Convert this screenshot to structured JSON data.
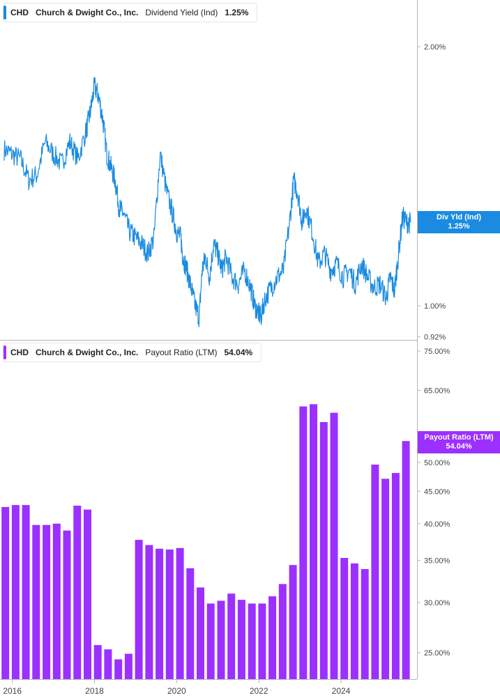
{
  "colors": {
    "yield_line": "#1a8be0",
    "payout_bar": "#9b30ff",
    "axis": "#b5b5b5",
    "tick_text": "#444444"
  },
  "panels": {
    "top": {
      "ticker": "CHD",
      "company": "Church & Dwight Co., Inc.",
      "metric": "Dividend Yield (Ind)",
      "value": "1.25%",
      "flag_label": "Div Yld (Ind)",
      "flag_value": "1.25%"
    },
    "bottom": {
      "ticker": "CHD",
      "company": "Church & Dwight Co., Inc.",
      "metric": "Payout Ratio (LTM)",
      "value": "54.04%",
      "flag_label": "Payout Ratio (LTM)",
      "flag_value": "54.04%"
    }
  },
  "chart_data": [
    {
      "type": "line",
      "title": "CHD Church & Dwight Co., Inc. Dividend Yield (Ind) 1.25%",
      "series": [
        {
          "name": "Dividend Yield (Ind)",
          "x": [
            2015.8,
            2016.0,
            2016.2,
            2016.4,
            2016.6,
            2016.8,
            2017.0,
            2017.2,
            2017.4,
            2017.6,
            2017.8,
            2017.9,
            2018.0,
            2018.1,
            2018.2,
            2018.3,
            2018.4,
            2018.5,
            2018.6,
            2018.7,
            2018.85,
            2019.0,
            2019.15,
            2019.3,
            2019.45,
            2019.6,
            2019.75,
            2019.9,
            2020.0,
            2020.1,
            2020.15,
            2020.25,
            2020.35,
            2020.45,
            2020.55,
            2020.62,
            2020.7,
            2020.8,
            2020.9,
            2021.0,
            2021.1,
            2021.2,
            2021.35,
            2021.5,
            2021.65,
            2021.8,
            2021.9,
            2022.0,
            2022.05,
            2022.15,
            2022.3,
            2022.45,
            2022.6,
            2022.75,
            2022.85,
            2022.95,
            2023.05,
            2023.15,
            2023.3,
            2023.45,
            2023.6,
            2023.75,
            2023.9,
            2024.05,
            2024.2,
            2024.35,
            2024.5,
            2024.65,
            2024.8,
            2024.95,
            2025.1,
            2025.2,
            2025.3,
            2025.4,
            2025.5,
            2025.6,
            2025.7
          ],
          "y": [
            1.52,
            1.5,
            1.48,
            1.4,
            1.42,
            1.55,
            1.5,
            1.46,
            1.55,
            1.48,
            1.6,
            1.68,
            1.8,
            1.75,
            1.65,
            1.5,
            1.45,
            1.4,
            1.3,
            1.28,
            1.22,
            1.2,
            1.18,
            1.15,
            1.2,
            1.5,
            1.36,
            1.28,
            1.22,
            1.2,
            1.14,
            1.1,
            1.05,
            1.0,
            0.97,
            1.1,
            1.14,
            1.08,
            1.18,
            1.15,
            1.1,
            1.14,
            1.08,
            1.06,
            1.1,
            1.05,
            1.0,
            0.98,
            0.97,
            1.02,
            1.05,
            1.08,
            1.1,
            1.25,
            1.4,
            1.35,
            1.25,
            1.3,
            1.22,
            1.12,
            1.15,
            1.1,
            1.12,
            1.08,
            1.1,
            1.06,
            1.12,
            1.08,
            1.05,
            1.06,
            1.02,
            1.08,
            1.04,
            1.15,
            1.27,
            1.25,
            1.25
          ]
        }
      ],
      "ylabel": "",
      "yscale": "log",
      "ylim": [
        0.92,
        2.25
      ],
      "y_ticks": [
        "2.00%",
        "1.00%",
        "0.92%"
      ],
      "y_tick_values": [
        2.0,
        1.0,
        0.92
      ],
      "grid": false,
      "legend": "top-left"
    },
    {
      "type": "bar",
      "title": "CHD Church & Dwight Co., Inc. Payout Ratio (LTM) 54.04%",
      "series": [
        {
          "name": "Payout Ratio (LTM)",
          "x": [
            2015.83,
            2016.08,
            2016.33,
            2016.58,
            2016.83,
            2017.08,
            2017.33,
            2017.58,
            2017.83,
            2018.08,
            2018.33,
            2018.58,
            2018.83,
            2019.08,
            2019.33,
            2019.58,
            2019.83,
            2020.08,
            2020.33,
            2020.58,
            2020.83,
            2021.08,
            2021.33,
            2021.58,
            2021.83,
            2022.08,
            2022.33,
            2022.58,
            2022.83,
            2023.08,
            2023.33,
            2023.58,
            2023.83,
            2024.08,
            2024.33,
            2024.58,
            2024.83,
            2025.08,
            2025.33,
            2025.58
          ],
          "values": [
            42.5,
            42.8,
            42.8,
            39.8,
            39.8,
            40.0,
            39.0,
            42.7,
            42.1,
            25.7,
            25.3,
            24.4,
            24.9,
            37.7,
            37.0,
            36.5,
            36.4,
            36.6,
            34.0,
            31.7,
            29.9,
            30.2,
            31.0,
            30.3,
            29.9,
            29.9,
            30.7,
            32.1,
            34.4,
            61.3,
            61.8,
            57.9,
            59.9,
            35.3,
            34.6,
            33.9,
            49.6,
            47.1,
            48.1,
            54.04
          ]
        }
      ],
      "ylabel": "",
      "yscale": "log",
      "ylim": [
        22.9,
        75.0
      ],
      "y_ticks": [
        "75.00%",
        "65.00%",
        "50.00%",
        "45.00%",
        "40.00%",
        "35.00%",
        "30.00%",
        "25.00%"
      ],
      "y_tick_values": [
        75,
        65,
        50,
        45,
        40,
        35,
        30,
        25
      ],
      "x_ticks": [
        "2016",
        "2018",
        "2020",
        "2022",
        "2024"
      ],
      "x_tick_values": [
        2016,
        2018,
        2020,
        2022,
        2024
      ],
      "grid": false,
      "legend": "top-left"
    }
  ]
}
